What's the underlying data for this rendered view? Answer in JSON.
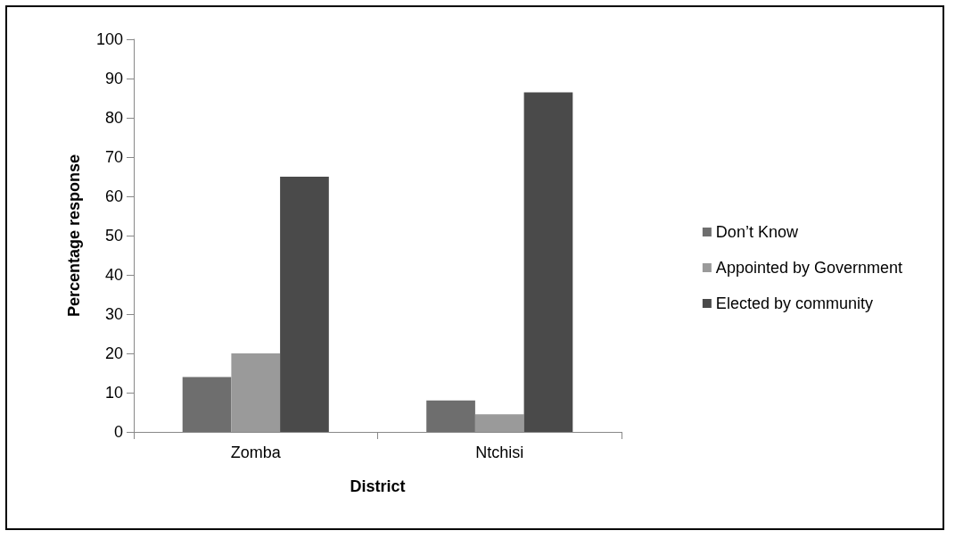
{
  "chart_data": {
    "type": "bar",
    "xlabel": "District",
    "ylabel": "Percentage response",
    "categories": [
      "Zomba",
      "Ntchisi"
    ],
    "series": [
      {
        "name": "Don’t Know",
        "color": "#6e6e6e",
        "values": [
          14,
          8
        ]
      },
      {
        "name": "Appointed by Government",
        "color": "#9a9a9a",
        "values": [
          20,
          4.5
        ]
      },
      {
        "name": "Elected by community",
        "color": "#4a4a4a",
        "values": [
          65,
          86.5
        ]
      }
    ],
    "ylim": [
      0,
      100
    ],
    "yticks": [
      0,
      10,
      20,
      30,
      40,
      50,
      60,
      70,
      80,
      90,
      100
    ],
    "grid": false,
    "legend": "right"
  }
}
